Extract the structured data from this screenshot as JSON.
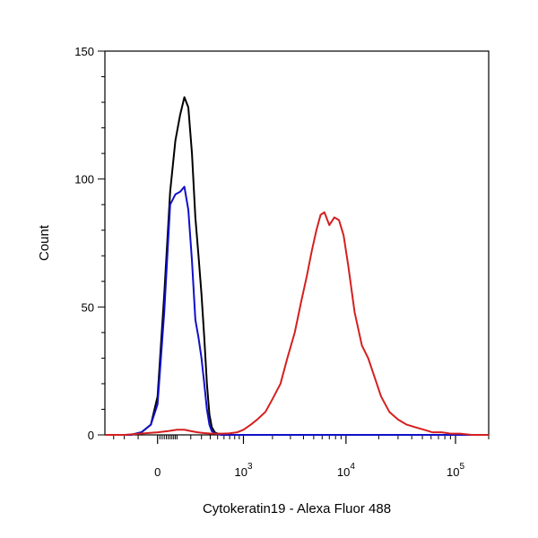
{
  "chart_data": {
    "type": "line",
    "title": "",
    "xlabel": "Cytokeratin19 - Alexa Fluor 488",
    "ylabel": "Count",
    "x_scale": "biexponential",
    "ylim": [
      0,
      150
    ],
    "xlim": [
      -400,
      200000
    ],
    "grid": false,
    "legend": "none",
    "y_ticks": [
      {
        "value": 0,
        "label": "0"
      },
      {
        "value": 50,
        "label": "50"
      },
      {
        "value": 100,
        "label": "100"
      },
      {
        "value": 150,
        "label": "150"
      }
    ],
    "x_ticks": [
      {
        "value": 0,
        "base": "0",
        "exp": ""
      },
      {
        "value": 1000,
        "base": "10",
        "exp": "3"
      },
      {
        "value": 10000,
        "base": "10",
        "exp": "4"
      },
      {
        "value": 100000,
        "base": "10",
        "exp": "5"
      }
    ],
    "series": [
      {
        "color": "#000000",
        "x": [
          -400,
          -250,
          -150,
          -80,
          -30,
          0,
          30,
          60,
          90,
          120,
          150,
          180,
          210,
          240,
          270,
          300,
          330,
          360,
          390,
          420,
          460,
          500,
          560,
          640,
          760,
          900,
          1200,
          2000,
          5000,
          20000,
          100000,
          200000
        ],
        "y": [
          0,
          0,
          0,
          1,
          4,
          15,
          55,
          95,
          115,
          125,
          132,
          128,
          110,
          85,
          70,
          55,
          38,
          20,
          8,
          3,
          1,
          0.5,
          0.3,
          0,
          0,
          0,
          0,
          0,
          0,
          0,
          0,
          0
        ]
      },
      {
        "color": "#1010c8",
        "x": [
          -400,
          -250,
          -150,
          -80,
          -30,
          0,
          30,
          60,
          90,
          120,
          150,
          180,
          210,
          240,
          270,
          300,
          330,
          360,
          390,
          420,
          460,
          500,
          560,
          640,
          760,
          900,
          1200,
          2000,
          5000,
          20000,
          100000,
          200000
        ],
        "y": [
          0,
          0,
          0,
          1,
          4,
          12,
          48,
          90,
          94,
          95,
          97,
          88,
          68,
          45,
          38,
          30,
          20,
          10,
          4,
          1.5,
          0.5,
          0.3,
          0,
          0,
          0,
          0,
          0,
          0,
          0,
          0,
          0,
          0
        ]
      },
      {
        "color": "#d42020",
        "x": [
          -400,
          -200,
          0,
          50,
          100,
          150,
          200,
          260,
          330,
          420,
          560,
          700,
          850,
          1000,
          1200,
          1400,
          1700,
          2000,
          2400,
          2800,
          3300,
          3800,
          4300,
          4800,
          5300,
          5800,
          6300,
          7000,
          7800,
          8600,
          9500,
          10500,
          12000,
          14000,
          16000,
          18500,
          21000,
          25000,
          30000,
          36000,
          43000,
          52000,
          62000,
          75000,
          90000,
          110000,
          140000,
          200000
        ],
        "y": [
          0,
          0,
          1,
          1.5,
          2,
          2,
          1.5,
          1,
          0.7,
          0.5,
          0.5,
          0.6,
          1,
          2,
          4,
          6,
          9,
          14,
          20,
          30,
          40,
          52,
          62,
          72,
          80,
          86,
          87,
          82,
          85,
          84,
          78,
          66,
          48,
          35,
          30,
          22,
          15,
          9,
          6,
          4,
          3,
          2,
          1,
          1,
          0.5,
          0.5,
          0,
          0
        ]
      }
    ]
  }
}
